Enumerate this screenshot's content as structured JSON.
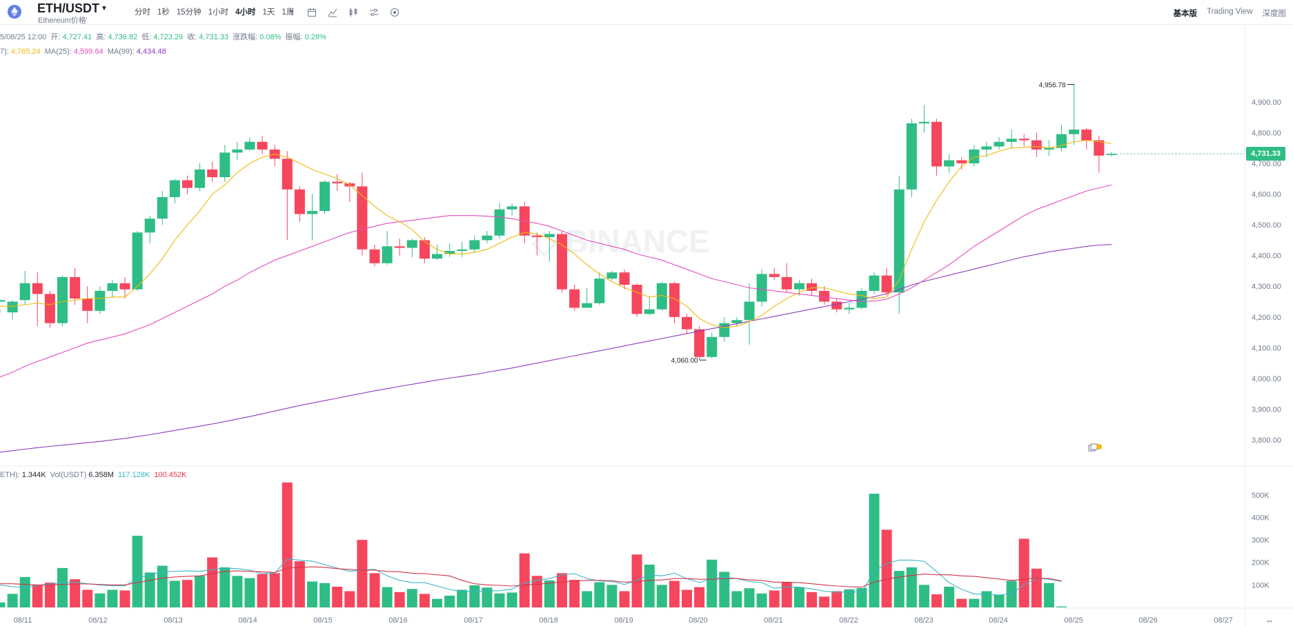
{
  "header": {
    "pair": "ETH/USDT",
    "subtitle": "Ethereum价格",
    "intervals": [
      {
        "label": "分时",
        "active": false
      },
      {
        "label": "1秒",
        "active": false
      },
      {
        "label": "15分钟",
        "active": false
      },
      {
        "label": "1小时",
        "active": false
      },
      {
        "label": "4小时",
        "active": true
      },
      {
        "label": "1天",
        "active": false
      },
      {
        "label": "1周",
        "active": false
      }
    ],
    "tool_icons": [
      "calendar-icon",
      "indicator-icon",
      "candle-type-icon",
      "settings-icon",
      "screenshot-icon"
    ],
    "view_tabs": [
      {
        "label": "基本版",
        "active": true
      },
      {
        "label": "Trading View",
        "active": false
      },
      {
        "label": "深度图",
        "active": false
      }
    ]
  },
  "ohlc": {
    "time": "5/08/25 12:00",
    "open_label": "开:",
    "open": "4,727.41",
    "high_label": "高:",
    "high": "4,736.82",
    "low_label": "低:",
    "low": "4,723.29",
    "close_label": "收:",
    "close": "4,731.33",
    "change_label": "涨跌幅:",
    "change": "0.08%",
    "amp_label": "振幅:",
    "amp": "0.28%"
  },
  "ma_legend": {
    "ma7_label": "7):",
    "ma7": "4,765.24",
    "ma25_label": "MA(25):",
    "ma25": "4,599.64",
    "ma99_label": "MA(99):",
    "ma99": "4,434.48"
  },
  "vol_legend": {
    "eth_label": "ETH):",
    "eth": "1.344K",
    "usdt_label": "Vol(USDT)",
    "usdt": "6.358M",
    "ma5": "117.128K",
    "ma10": "100.452K"
  },
  "current_price": "4,731.33",
  "annotations": {
    "high": "4,956.78",
    "low": "4,060.00"
  },
  "colors": {
    "up": "#2ebd85",
    "down": "#f6465d",
    "ma7": "#f0b90b",
    "ma25": "#e64bbf",
    "ma99": "#8e3cbf",
    "vol_ma5": "#3bb5c7",
    "vol_ma10": "#d0344a"
  },
  "chart_data": {
    "type": "candlestick",
    "price_axis": {
      "ticks": [
        "4,900.00",
        "4,800.00",
        "4,700.00",
        "4,600.00",
        "4,500.00",
        "4,400.00",
        "4,300.00",
        "4,200.00",
        "4,100.00",
        "4,000.00",
        "3,900.00",
        "3,800.00"
      ],
      "range": [
        3715,
        5070
      ]
    },
    "volume_axis": {
      "ticks": [
        "500K",
        "400K",
        "300K",
        "200K",
        "100K"
      ],
      "range": [
        0,
        585
      ]
    },
    "x_labels": [
      "08/11",
      "08/12",
      "08/13",
      "08/14",
      "08/15",
      "08/16",
      "08/17",
      "08/18",
      "08/19",
      "08/20",
      "08/21",
      "08/22",
      "08/23",
      "08/24",
      "08/25",
      "08/26",
      "08/27"
    ],
    "candles": [
      [
        4250,
        4255,
        4225,
        4215
      ],
      [
        4215,
        4250,
        4255,
        4190
      ],
      [
        4255,
        4310,
        4350,
        4240
      ],
      [
        4310,
        4275,
        4345,
        4170
      ],
      [
        4275,
        4180,
        4285,
        4165
      ],
      [
        4180,
        4330,
        4335,
        4170
      ],
      [
        4330,
        4260,
        4360,
        4240
      ],
      [
        4260,
        4220,
        4300,
        4180
      ],
      [
        4220,
        4285,
        4300,
        4210
      ],
      [
        4285,
        4310,
        4320,
        4265
      ],
      [
        4310,
        4290,
        4330,
        4260
      ],
      [
        4290,
        4475,
        4480,
        4285
      ],
      [
        4475,
        4520,
        4530,
        4440
      ],
      [
        4520,
        4590,
        4610,
        4500
      ],
      [
        4590,
        4645,
        4650,
        4570
      ],
      [
        4645,
        4620,
        4660,
        4600
      ],
      [
        4620,
        4680,
        4700,
        4610
      ],
      [
        4680,
        4655,
        4705,
        4640
      ],
      [
        4655,
        4735,
        4760,
        4640
      ],
      [
        4735,
        4745,
        4770,
        4710
      ],
      [
        4745,
        4770,
        4785,
        4740
      ],
      [
        4770,
        4745,
        4790,
        4730
      ],
      [
        4745,
        4715,
        4760,
        4690
      ],
      [
        4715,
        4615,
        4740,
        4450
      ],
      [
        4615,
        4535,
        4625,
        4510
      ],
      [
        4535,
        4545,
        4600,
        4450
      ],
      [
        4545,
        4640,
        4645,
        4535
      ],
      [
        4640,
        4635,
        4665,
        4610
      ],
      [
        4635,
        4625,
        4640,
        4575
      ],
      [
        4625,
        4420,
        4670,
        4400
      ],
      [
        4420,
        4375,
        4435,
        4365
      ],
      [
        4375,
        4430,
        4480,
        4370
      ],
      [
        4430,
        4425,
        4455,
        4400
      ],
      [
        4425,
        4450,
        4455,
        4395
      ],
      [
        4450,
        4390,
        4460,
        4375
      ],
      [
        4390,
        4405,
        4435,
        4385
      ],
      [
        4405,
        4415,
        4440,
        4395
      ],
      [
        4415,
        4420,
        4445,
        4395
      ],
      [
        4420,
        4450,
        4465,
        4410
      ],
      [
        4450,
        4465,
        4480,
        4440
      ],
      [
        4465,
        4550,
        4570,
        4455
      ],
      [
        4550,
        4560,
        4570,
        4530
      ],
      [
        4560,
        4465,
        4575,
        4440
      ],
      [
        4465,
        4460,
        4475,
        4400
      ],
      [
        4460,
        4470,
        4480,
        4380
      ],
      [
        4470,
        4290,
        4480,
        4280
      ],
      [
        4290,
        4230,
        4305,
        4220
      ],
      [
        4230,
        4245,
        4295,
        4230
      ],
      [
        4245,
        4325,
        4345,
        4240
      ],
      [
        4325,
        4345,
        4350,
        4320
      ],
      [
        4345,
        4305,
        4355,
        4290
      ],
      [
        4305,
        4210,
        4310,
        4200
      ],
      [
        4210,
        4225,
        4265,
        4205
      ],
      [
        4225,
        4310,
        4315,
        4220
      ],
      [
        4310,
        4200,
        4315,
        4180
      ],
      [
        4200,
        4160,
        4210,
        4145
      ],
      [
        4160,
        4070,
        4170,
        4060
      ],
      [
        4070,
        4135,
        4150,
        4065
      ],
      [
        4135,
        4180,
        4200,
        4120
      ],
      [
        4180,
        4190,
        4200,
        4170
      ],
      [
        4190,
        4250,
        4310,
        4110
      ],
      [
        4250,
        4340,
        4355,
        4235
      ],
      [
        4340,
        4330,
        4360,
        4320
      ],
      [
        4330,
        4290,
        4375,
        4280
      ],
      [
        4290,
        4310,
        4320,
        4270
      ],
      [
        4310,
        4285,
        4325,
        4270
      ],
      [
        4285,
        4250,
        4300,
        4240
      ],
      [
        4250,
        4225,
        4260,
        4215
      ],
      [
        4225,
        4230,
        4245,
        4210
      ],
      [
        4230,
        4285,
        4295,
        4225
      ],
      [
        4285,
        4335,
        4345,
        4275
      ],
      [
        4335,
        4280,
        4360,
        4270
      ],
      [
        4280,
        4615,
        4660,
        4210
      ],
      [
        4615,
        4830,
        4845,
        4590
      ],
      [
        4830,
        4835,
        4890,
        4800
      ],
      [
        4835,
        4690,
        4845,
        4660
      ],
      [
        4690,
        4710,
        4730,
        4670
      ],
      [
        4710,
        4700,
        4720,
        4680
      ],
      [
        4700,
        4745,
        4760,
        4690
      ],
      [
        4745,
        4755,
        4770,
        4720
      ],
      [
        4755,
        4770,
        4785,
        4745
      ],
      [
        4770,
        4780,
        4810,
        4750
      ],
      [
        4780,
        4775,
        4795,
        4755
      ],
      [
        4775,
        4745,
        4800,
        4720
      ],
      [
        4745,
        4750,
        4775,
        4725
      ],
      [
        4750,
        4795,
        4825,
        4740
      ],
      [
        4795,
        4810,
        4960,
        4760
      ],
      [
        4810,
        4775,
        4815,
        4745
      ],
      [
        4775,
        4725,
        4790,
        4670
      ],
      [
        4727,
        4731,
        4737,
        4723
      ]
    ],
    "volumes": [
      22,
      60,
      135,
      100,
      110,
      175,
      125,
      78,
      62,
      78,
      75,
      318,
      155,
      185,
      118,
      122,
      140,
      222,
      178,
      140,
      130,
      148,
      152,
      555,
      205,
      115,
      108,
      92,
      72,
      300,
      152,
      90,
      68,
      82,
      60,
      38,
      52,
      78,
      98,
      88,
      62,
      66,
      240,
      140,
      120,
      152,
      122,
      72,
      112,
      100,
      72,
      235,
      190,
      100,
      118,
      78,
      90,
      212,
      158,
      72,
      85,
      62,
      75,
      112,
      90,
      68,
      48,
      72,
      80,
      86,
      505,
      345,
      162,
      178,
      100,
      58,
      92,
      38,
      38,
      72,
      55,
      118,
      305,
      172,
      108,
      4
    ],
    "ma7": [
      4235,
      4235,
      4240,
      4245,
      4240,
      4250,
      4255,
      4260,
      4260,
      4265,
      4265,
      4300,
      4340,
      4390,
      4450,
      4500,
      4545,
      4600,
      4630,
      4670,
      4700,
      4720,
      4730,
      4720,
      4700,
      4680,
      4665,
      4650,
      4630,
      4595,
      4560,
      4530,
      4510,
      4485,
      4445,
      4420,
      4405,
      4405,
      4410,
      4420,
      4440,
      4460,
      4475,
      4470,
      4455,
      4435,
      4405,
      4370,
      4340,
      4315,
      4295,
      4280,
      4265,
      4270,
      4260,
      4235,
      4195,
      4175,
      4165,
      4170,
      4185,
      4205,
      4235,
      4260,
      4280,
      4295,
      4295,
      4285,
      4275,
      4270,
      4260,
      4265,
      4320,
      4420,
      4510,
      4580,
      4640,
      4690,
      4720,
      4725,
      4740,
      4750,
      4752,
      4755,
      4750,
      4758,
      4770,
      4775,
      4770,
      4765
    ],
    "ma25": [
      4005,
      4020,
      4040,
      4055,
      4070,
      4085,
      4100,
      4115,
      4125,
      4135,
      4145,
      4160,
      4175,
      4195,
      4215,
      4235,
      4255,
      4275,
      4300,
      4320,
      4345,
      4365,
      4385,
      4400,
      4415,
      4430,
      4445,
      4460,
      4475,
      4485,
      4495,
      4505,
      4510,
      4515,
      4520,
      4525,
      4530,
      4530,
      4530,
      4528,
      4525,
      4520,
      4512,
      4505,
      4495,
      4480,
      4465,
      4450,
      4440,
      4430,
      4420,
      4405,
      4395,
      4385,
      4370,
      4355,
      4340,
      4325,
      4315,
      4305,
      4295,
      4290,
      4285,
      4280,
      4275,
      4270,
      4265,
      4260,
      4255,
      4250,
      4252,
      4258,
      4275,
      4295,
      4320,
      4345,
      4370,
      4400,
      4430,
      4455,
      4480,
      4505,
      4530,
      4550,
      4565,
      4580,
      4595,
      4610,
      4620,
      4630
    ],
    "ma99": [
      3760,
      3765,
      3770,
      3775,
      3779,
      3783,
      3787,
      3791,
      3795,
      3800,
      3805,
      3811,
      3817,
      3824,
      3831,
      3838,
      3845,
      3852,
      3860,
      3868,
      3876,
      3885,
      3894,
      3903,
      3912,
      3920,
      3928,
      3936,
      3944,
      3952,
      3960,
      3967,
      3974,
      3981,
      3988,
      3995,
      4001,
      4007,
      4013,
      4020,
      4027,
      4034,
      4042,
      4050,
      4058,
      4066,
      4074,
      4082,
      4090,
      4098,
      4106,
      4114,
      4122,
      4130,
      4138,
      4146,
      4154,
      4162,
      4170,
      4178,
      4186,
      4194,
      4202,
      4210,
      4218,
      4226,
      4234,
      4242,
      4250,
      4258,
      4266,
      4276,
      4290,
      4304,
      4316,
      4326,
      4336,
      4346,
      4356,
      4366,
      4376,
      4386,
      4396,
      4404,
      4412,
      4418,
      4424,
      4430,
      4434,
      4436
    ],
    "vol_ma5": [
      100,
      92,
      88,
      98,
      104,
      110,
      112,
      105,
      100,
      96,
      96,
      128,
      145,
      160,
      160,
      162,
      160,
      168,
      175,
      172,
      165,
      150,
      152,
      215,
      210,
      205,
      190,
      175,
      160,
      165,
      170,
      140,
      120,
      110,
      110,
      95,
      80,
      70,
      70,
      74,
      74,
      82,
      108,
      120,
      128,
      144,
      150,
      128,
      118,
      115,
      102,
      120,
      145,
      140,
      152,
      128,
      110,
      128,
      135,
      128,
      115,
      110,
      85,
      90,
      90,
      82,
      72,
      68,
      68,
      68,
      160,
      195,
      210,
      210,
      205,
      160,
      110,
      80,
      60,
      58,
      55,
      62,
      100,
      130,
      125,
      115
    ],
    "vol_ma10": [
      105,
      105,
      102,
      100,
      100,
      102,
      104,
      104,
      102,
      100,
      100,
      110,
      120,
      130,
      135,
      138,
      140,
      150,
      160,
      162,
      160,
      158,
      155,
      175,
      178,
      180,
      178,
      172,
      168,
      165,
      165,
      160,
      158,
      152,
      150,
      145,
      140,
      120,
      105,
      100,
      98,
      95,
      100,
      102,
      108,
      112,
      118,
      120,
      120,
      118,
      112,
      115,
      120,
      122,
      128,
      128,
      125,
      125,
      128,
      128,
      122,
      120,
      112,
      112,
      110,
      105,
      100,
      95,
      92,
      90,
      112,
      125,
      135,
      142,
      148,
      145,
      145,
      140,
      138,
      132,
      126,
      120,
      125,
      130,
      128,
      118
    ]
  }
}
